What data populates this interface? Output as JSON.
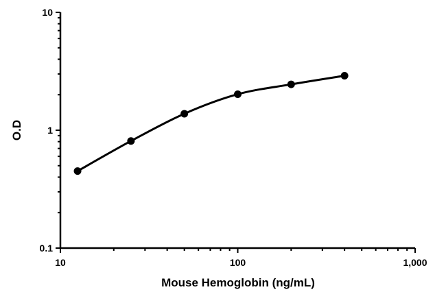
{
  "chart_data": {
    "type": "line",
    "title": "",
    "xlabel": "Mouse Hemoglobin (ng/mL)",
    "ylabel": "O.D",
    "x_scale": "log",
    "y_scale": "log",
    "xlim": [
      10,
      1000
    ],
    "ylim": [
      0.1,
      10
    ],
    "x_ticks": [
      10,
      100,
      1000
    ],
    "x_tick_labels": [
      "10",
      "100",
      "1,000"
    ],
    "y_ticks": [
      0.1,
      1,
      10
    ],
    "y_tick_labels": [
      "0.1",
      "1",
      "10"
    ],
    "grid": false,
    "legend": "none",
    "series": [
      {
        "color": "#000000",
        "marker": "circle",
        "x": [
          12.5,
          25,
          50,
          100,
          200,
          400
        ],
        "y": [
          0.45,
          0.81,
          1.38,
          2.02,
          2.45,
          2.9
        ]
      }
    ]
  }
}
